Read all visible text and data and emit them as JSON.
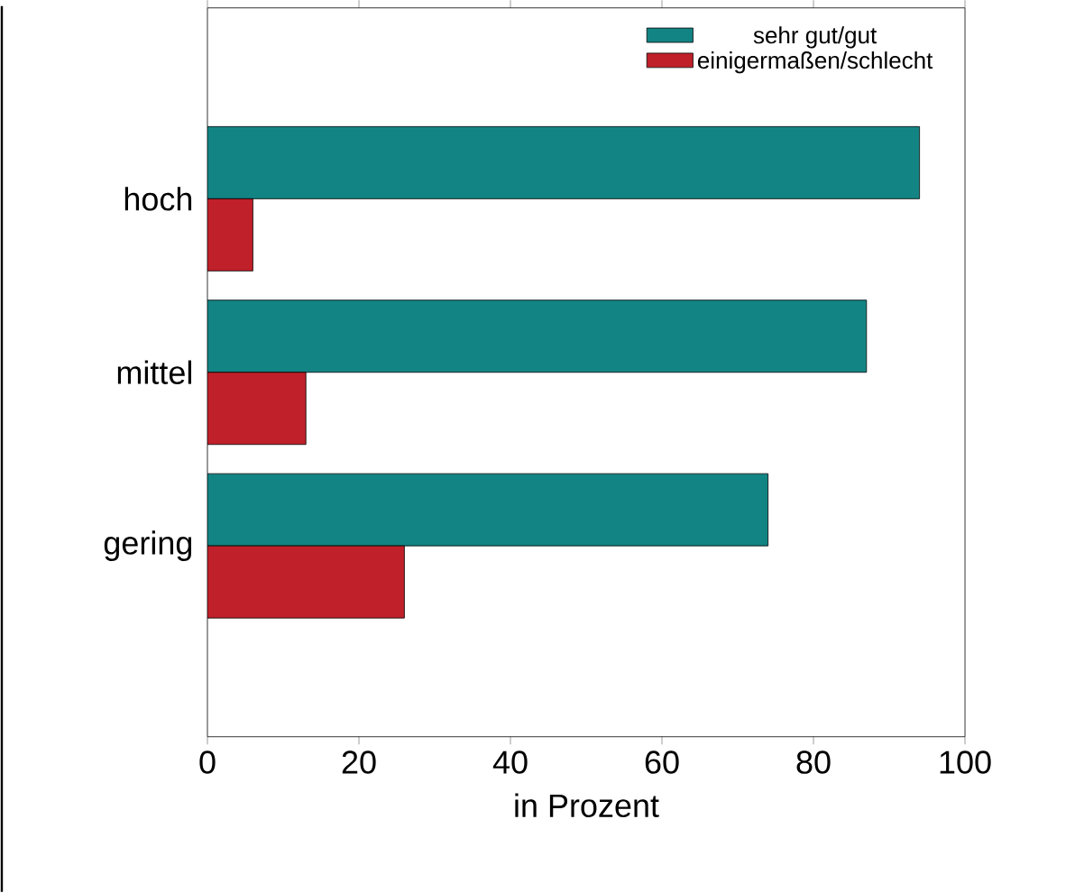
{
  "chart_data": {
    "type": "bar",
    "orientation": "horizontal",
    "xlabel": "in Prozent",
    "categories": [
      "hoch",
      "mittel",
      "gering"
    ],
    "series": [
      {
        "name": "sehr gut/gut",
        "color": "#138484",
        "values": [
          94,
          87,
          74
        ]
      },
      {
        "name": "einigermaßen/schlecht",
        "color": "#c0202a",
        "values": [
          6,
          13,
          26
        ]
      }
    ],
    "xlim": [
      0,
      100
    ],
    "xticks": [
      0,
      20,
      40,
      60,
      80,
      100
    ],
    "grid": false,
    "legend": "top right"
  }
}
